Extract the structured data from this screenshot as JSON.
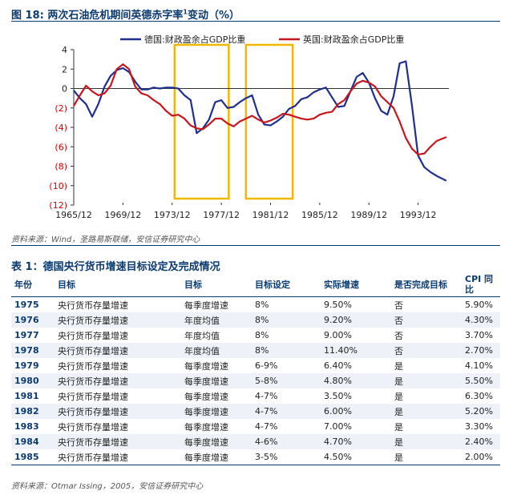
{
  "figure": {
    "title_prefix": "图 18:",
    "title_main": "两次石油危机期间英德赤字率",
    "title_sup": "1",
    "title_suffix": "变动（%）",
    "source": "资料来源：Wind，圣路易斯联储，安信证券研究中心"
  },
  "chart_data": {
    "type": "line",
    "title": "两次石油危机期间英德赤字率1变动（%）",
    "xlabel": "",
    "ylabel": "",
    "ylim": [
      -12,
      4
    ],
    "yticks": [
      4,
      2,
      0,
      -2,
      -4,
      -6,
      -8,
      -10,
      -12
    ],
    "ytick_labels": [
      "4",
      "2",
      "0",
      "(2)",
      "(4)",
      "(6)",
      "(8)",
      "(10)",
      "(12)"
    ],
    "xticks": [
      "1965/12",
      "1969/12",
      "1973/12",
      "1977/12",
      "1981/12",
      "1985/12",
      "1989/12",
      "1993/12"
    ],
    "xtick_years": [
      1965,
      1969,
      1973,
      1977,
      1981,
      1985,
      1989,
      1993
    ],
    "xlim": [
      1965,
      1995.5
    ],
    "grid": false,
    "legend_position": "top",
    "highlight_ranges": [
      [
        1973.2,
        1977.6
      ],
      [
        1979.0,
        1982.8
      ]
    ],
    "highlight_color": "#f2b705",
    "series": [
      {
        "name": "德国:财政盈余占GDP比重",
        "color": "#1f2f8f",
        "points": [
          [
            1965,
            -0.2
          ],
          [
            1965.5,
            -1.0
          ],
          [
            1966,
            -1.6
          ],
          [
            1966.5,
            -2.9
          ],
          [
            1967,
            -1.6
          ],
          [
            1967.5,
            0.2
          ],
          [
            1968,
            1.3
          ],
          [
            1968.5,
            1.9
          ],
          [
            1969,
            2.1
          ],
          [
            1969.5,
            1.7
          ],
          [
            1970,
            0.7
          ],
          [
            1970.5,
            -0.1
          ],
          [
            1971,
            -0.1
          ],
          [
            1971.5,
            0.1
          ],
          [
            1972,
            0.0
          ],
          [
            1972.5,
            0.1
          ],
          [
            1973,
            0.1
          ],
          [
            1973.5,
            0.0
          ],
          [
            1974,
            -0.7
          ],
          [
            1974.5,
            -1.2
          ],
          [
            1975,
            -4.6
          ],
          [
            1975.5,
            -4.1
          ],
          [
            1976,
            -3.2
          ],
          [
            1976.5,
            -1.4
          ],
          [
            1977,
            -1.2
          ],
          [
            1977.5,
            -2.0
          ],
          [
            1978,
            -1.9
          ],
          [
            1978.5,
            -1.4
          ],
          [
            1979,
            -1.0
          ],
          [
            1979.5,
            -0.7
          ],
          [
            1980,
            -2.7
          ],
          [
            1980.5,
            -3.7
          ],
          [
            1981,
            -3.8
          ],
          [
            1981.5,
            -3.4
          ],
          [
            1982,
            -2.9
          ],
          [
            1982.5,
            -2.1
          ],
          [
            1983,
            -1.8
          ],
          [
            1983.5,
            -1.1
          ],
          [
            1984,
            -0.9
          ],
          [
            1984.5,
            -0.4
          ],
          [
            1985,
            -0.1
          ],
          [
            1985.5,
            0.1
          ],
          [
            1986,
            -0.9
          ],
          [
            1986.5,
            -1.9
          ],
          [
            1987,
            -1.8
          ],
          [
            1987.5,
            -0.3
          ],
          [
            1988,
            1.2
          ],
          [
            1988.5,
            1.6
          ],
          [
            1989,
            0.6
          ],
          [
            1989.5,
            -1.0
          ],
          [
            1990,
            -2.3
          ],
          [
            1990.5,
            -2.7
          ],
          [
            1991,
            -0.8
          ],
          [
            1991.5,
            2.6
          ],
          [
            1992,
            2.8
          ],
          [
            1992.5,
            -1.8
          ],
          [
            1993,
            -6.9
          ],
          [
            1993.5,
            -8.1
          ],
          [
            1994,
            -8.6
          ],
          [
            1994.5,
            -9.0
          ],
          [
            1995.3,
            -9.5
          ]
        ]
      },
      {
        "name": "英国:财政盈余占GDP比重",
        "color": "#c8161d",
        "points": [
          [
            1965,
            -1.8
          ],
          [
            1965.5,
            -0.7
          ],
          [
            1966,
            0.3
          ],
          [
            1966.5,
            -0.3
          ],
          [
            1967,
            -0.7
          ],
          [
            1967.5,
            -0.5
          ],
          [
            1968,
            0.3
          ],
          [
            1968.5,
            2.0
          ],
          [
            1969,
            2.5
          ],
          [
            1969.5,
            2.0
          ],
          [
            1970,
            0.2
          ],
          [
            1970.5,
            -0.5
          ],
          [
            1971,
            -0.7
          ],
          [
            1971.5,
            -1.2
          ],
          [
            1972,
            -1.6
          ],
          [
            1972.5,
            -2.3
          ],
          [
            1973,
            -2.8
          ],
          [
            1973.5,
            -2.7
          ],
          [
            1974,
            -3.1
          ],
          [
            1974.5,
            -3.8
          ],
          [
            1975,
            -4.1
          ],
          [
            1975.5,
            -4.2
          ],
          [
            1976,
            -3.7
          ],
          [
            1976.5,
            -3.1
          ],
          [
            1977,
            -3.1
          ],
          [
            1977.5,
            -3.6
          ],
          [
            1978,
            -3.9
          ],
          [
            1978.5,
            -3.4
          ],
          [
            1979,
            -3.1
          ],
          [
            1979.5,
            -2.8
          ],
          [
            1980,
            -3.2
          ],
          [
            1980.5,
            -3.5
          ],
          [
            1981,
            -3.3
          ],
          [
            1981.5,
            -3.0
          ],
          [
            1982,
            -2.6
          ],
          [
            1982.5,
            -2.7
          ],
          [
            1983,
            -2.9
          ],
          [
            1983.5,
            -3.1
          ],
          [
            1984,
            -3.2
          ],
          [
            1984.5,
            -3.1
          ],
          [
            1985,
            -2.7
          ],
          [
            1985.5,
            -2.5
          ],
          [
            1986,
            -2.4
          ],
          [
            1986.5,
            -1.6
          ],
          [
            1987,
            -1.2
          ],
          [
            1987.5,
            -0.3
          ],
          [
            1988,
            0.5
          ],
          [
            1988.5,
            0.8
          ],
          [
            1989,
            0.6
          ],
          [
            1989.5,
            0.2
          ],
          [
            1990,
            -0.8
          ],
          [
            1990.5,
            -1.4
          ],
          [
            1991,
            -2.0
          ],
          [
            1991.5,
            -3.4
          ],
          [
            1992,
            -5.1
          ],
          [
            1992.5,
            -6.2
          ],
          [
            1993,
            -6.8
          ],
          [
            1993.5,
            -6.7
          ],
          [
            1994,
            -6.0
          ],
          [
            1994.5,
            -5.4
          ],
          [
            1995.3,
            -5.0
          ]
        ]
      }
    ]
  },
  "table": {
    "title": "表 1：德国央行货币增速目标设定及完成情况",
    "headers": [
      "年份",
      "目标",
      "目标",
      "目标设定",
      "实际增速",
      "是否完成目标",
      "CPI 同比"
    ],
    "rows": [
      [
        "1975",
        "央行货币存量增速",
        "每季度增速",
        "8%",
        "9.50%",
        "否",
        "5.90%"
      ],
      [
        "1976",
        "央行货币存量增速",
        "年度均值",
        "8%",
        "9.20%",
        "否",
        "4.30%"
      ],
      [
        "1977",
        "央行货币存量增速",
        "年度均值",
        "8%",
        "9.00%",
        "否",
        "3.70%"
      ],
      [
        "1978",
        "央行货币存量增速",
        "年度均值",
        "8%",
        "11.40%",
        "否",
        "2.70%"
      ],
      [
        "1979",
        "央行货币存量增速",
        "每季度增速",
        "6-9%",
        "6.40%",
        "是",
        "4.10%"
      ],
      [
        "1980",
        "央行货币存量增速",
        "每季度增速",
        "5-8%",
        "4.80%",
        "是",
        "5.50%"
      ],
      [
        "1981",
        "央行货币存量增速",
        "每季度增速",
        "4-7%",
        "3.50%",
        "是",
        "6.30%"
      ],
      [
        "1982",
        "央行货币存量增速",
        "每季度增速",
        "4-7%",
        "6.00%",
        "是",
        "5.20%"
      ],
      [
        "1983",
        "央行货币存量增速",
        "每季度增速",
        "4-7%",
        "7.00%",
        "是",
        "3.30%"
      ],
      [
        "1984",
        "央行货币存量增速",
        "每季度增速",
        "4-6%",
        "4.70%",
        "是",
        "2.40%"
      ],
      [
        "1985",
        "央行货币存量增速",
        "每季度增速",
        "3-5%",
        "4.50%",
        "是",
        "2.00%"
      ]
    ],
    "source": "资料来源：Otmar Issing，2005，安信证券研究中心"
  }
}
